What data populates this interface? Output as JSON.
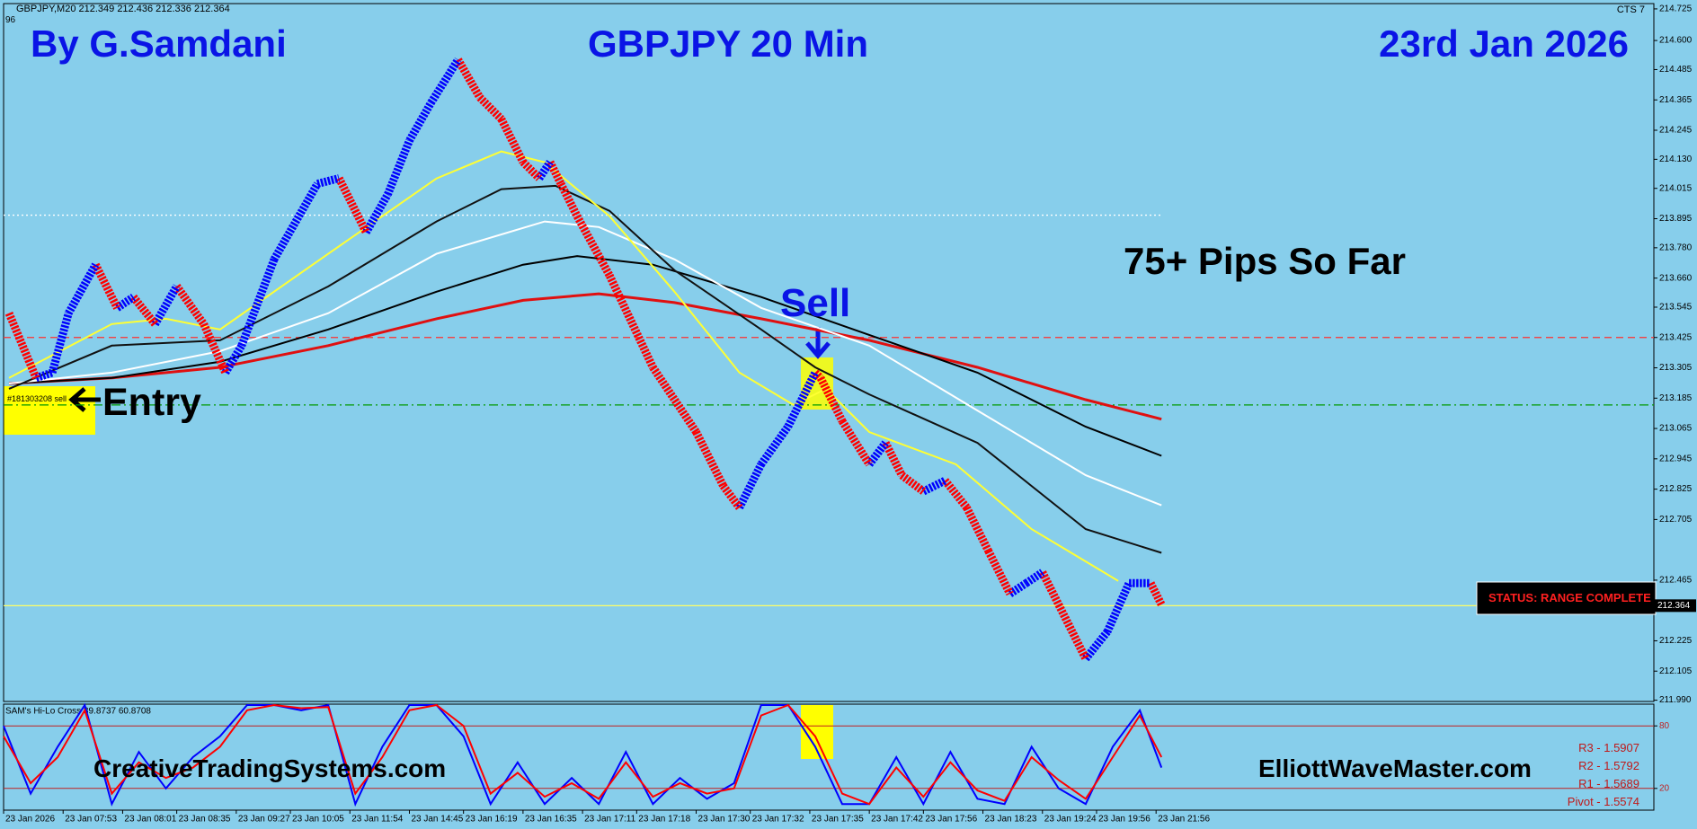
{
  "header": {
    "symbol_info": "GBPJPY,M20  212.349 212.436 212.336 212.364",
    "sub": "96",
    "cts": "CTS 7"
  },
  "annotations": {
    "author": "By G.Samdani",
    "instrument": "GBPJPY 20 Min",
    "date": "23rd Jan 2026",
    "result": "75+ Pips So Far",
    "sell": "Sell",
    "entry": "Entry",
    "order": "#181303208 sell",
    "site_left": "CreativeTradingSystems.com",
    "site_right": "ElliottWaveMaster.com",
    "status": "STATUS: RANGE COMPLETE",
    "pivots": [
      "R3 - 1.5907",
      "R2 - 1.5792",
      "R1 - 1.5689",
      "Pivot - 1.5574"
    ]
  },
  "chart_data": [
    {
      "type": "line",
      "xlim": [
        0,
        305
      ],
      "ylim": [
        211.985,
        214.746
      ],
      "xticks": [
        {
          "value": 0,
          "label": "23 Jan 2026"
        },
        {
          "value": 11,
          "label": "23 Jan 07:53"
        },
        {
          "value": 22,
          "label": "23 Jan 08:01"
        },
        {
          "value": 32,
          "label": "23 Jan 08:35"
        },
        {
          "value": 43,
          "label": "23 Jan 09:27"
        },
        {
          "value": 53,
          "label": "23 Jan 10:05"
        },
        {
          "value": 64,
          "label": "23 Jan 11:54"
        },
        {
          "value": 75,
          "label": "23 Jan 14:45"
        },
        {
          "value": 85,
          "label": "23 Jan 16:19"
        },
        {
          "value": 96,
          "label": "23 Jan 16:35"
        },
        {
          "value": 107,
          "label": "23 Jan 17:11"
        },
        {
          "value": 117,
          "label": "23 Jan 17:18"
        },
        {
          "value": 128,
          "label": "23 Jan 17:30"
        },
        {
          "value": 138,
          "label": "23 Jan 17:32"
        },
        {
          "value": 149,
          "label": "23 Jan 17:35"
        },
        {
          "value": 160,
          "label": "23 Jan 17:42"
        },
        {
          "value": 170,
          "label": "23 Jan 17:56"
        },
        {
          "value": 181,
          "label": "23 Jan 18:23"
        },
        {
          "value": 192,
          "label": "23 Jan 19:24"
        },
        {
          "value": 202,
          "label": "23 Jan 19:56"
        },
        {
          "value": 213,
          "label": "23 Jan 21:56"
        }
      ],
      "yticks": [
        214.725,
        {
          "value": 214.6,
          "label": "214.600"
        },
        214.485,
        214.365,
        214.245,
        {
          "value": 214.13,
          "label": "214.130"
        },
        214.015,
        213.895,
        {
          "value": 213.78,
          "label": "213.780"
        },
        {
          "value": 213.66,
          "label": "213.660"
        },
        213.545,
        213.425,
        213.305,
        213.185,
        213.065,
        212.945,
        212.825,
        212.705,
        212.465,
        212.225,
        212.105,
        {
          "value": 211.99,
          "label": "211.990"
        }
      ],
      "series": [
        {
          "color": "#0000ff",
          "down_color": "#ff0000",
          "x": [
            1,
            6,
            9,
            12,
            17,
            21,
            24,
            28,
            32,
            37,
            41,
            44,
            50,
            58,
            62,
            67,
            71,
            75,
            79,
            84,
            88,
            92,
            96,
            99,
            101,
            103,
            106,
            112,
            120,
            128,
            133,
            136,
            140,
            145,
            150,
            151,
            155,
            160,
            163,
            166,
            170,
            174,
            178,
            182,
            186,
            189,
            192,
            195,
            200,
            204,
            208,
            212,
            214
          ],
          "values": [
            213.521,
            213.265,
            213.286,
            213.521,
            213.713,
            213.542,
            213.585,
            213.478,
            213.628,
            213.478,
            213.286,
            213.393,
            213.734,
            214.033,
            214.055,
            213.841,
            213.991,
            214.204,
            214.354,
            214.524,
            214.375,
            214.289,
            214.119,
            214.055,
            214.119,
            214.033,
            213.905,
            213.67,
            213.307,
            213.051,
            212.838,
            212.752,
            212.923,
            213.073,
            213.286,
            213.265,
            213.094,
            212.923,
            213.008,
            212.88,
            212.816,
            212.859,
            212.752,
            212.581,
            212.411,
            212.453,
            212.496,
            212.368,
            212.154,
            212.261,
            212.453,
            212.453,
            212.368
          ]
        },
        {
          "color": "#e01010",
          "x": [
            1,
            20,
            40,
            60,
            80,
            96,
            110,
            124,
            140,
            160,
            180,
            200,
            214
          ],
          "values": [
            213.243,
            213.265,
            213.307,
            213.393,
            213.499,
            213.572,
            213.598,
            213.563,
            213.499,
            213.414,
            213.307,
            213.179,
            213.102
          ]
        },
        {
          "color": "#000000",
          "x": [
            1,
            20,
            40,
            60,
            80,
            96,
            106,
            120,
            140,
            160,
            180,
            200,
            214
          ],
          "values": [
            213.243,
            213.265,
            213.329,
            213.457,
            213.606,
            213.713,
            213.747,
            213.713,
            213.585,
            213.435,
            213.286,
            213.072,
            212.957
          ]
        },
        {
          "color": "#ffffff",
          "x": [
            1,
            20,
            40,
            60,
            80,
            100,
            110,
            124,
            140,
            160,
            180,
            200,
            214
          ],
          "values": [
            213.243,
            213.286,
            213.371,
            213.521,
            213.756,
            213.884,
            213.862,
            213.734,
            213.542,
            213.393,
            213.136,
            212.88,
            212.761
          ]
        },
        {
          "color": "#111111",
          "x": [
            1,
            20,
            40,
            60,
            80,
            92,
            102,
            112,
            124,
            140,
            150,
            160,
            180,
            200,
            214
          ],
          "values": [
            213.222,
            213.393,
            213.414,
            213.627,
            213.884,
            214.012,
            214.025,
            213.926,
            213.691,
            213.457,
            213.307,
            213.2,
            213.008,
            212.667,
            212.573
          ]
        },
        {
          "color": "#ffff33",
          "x": [
            1,
            20,
            30,
            40,
            60,
            80,
            92,
            100,
            112,
            124,
            136,
            146,
            152,
            160,
            176,
            190,
            200,
            206
          ],
          "values": [
            213.265,
            213.478,
            213.499,
            213.457,
            213.756,
            214.054,
            214.161,
            214.118,
            213.905,
            213.606,
            213.286,
            213.158,
            213.222,
            213.051,
            212.923,
            212.667,
            212.539,
            212.462
          ]
        }
      ],
      "levels": [
        {
          "value": 213.425,
          "color": "#ff3030",
          "style": "dashed"
        },
        {
          "value": 213.158,
          "color": "#009900",
          "style": "dashdot"
        },
        {
          "value": 213.909,
          "color": "#ffffff",
          "style": "dotted"
        },
        {
          "value": 212.364,
          "color": "#ffff66",
          "style": "solid"
        }
      ]
    },
    {
      "type": "line",
      "title": "SAM's Hi-Lo Cross 39.8737 60.8708",
      "xlim": [
        0,
        305
      ],
      "ylim": [
        0,
        100
      ],
      "yticks": [
        20,
        80
      ],
      "x": [
        0,
        5,
        10,
        15,
        20,
        25,
        30,
        35,
        40,
        45,
        50,
        55,
        60,
        65,
        70,
        75,
        80,
        85,
        90,
        95,
        100,
        105,
        110,
        115,
        120,
        125,
        130,
        135,
        140,
        145,
        150,
        155,
        160,
        165,
        170,
        175,
        180,
        185,
        190,
        195,
        200,
        205,
        210,
        214
      ],
      "series": [
        {
          "color": "#0000ff",
          "values": [
            80,
            15,
            60,
            100,
            5,
            55,
            20,
            50,
            70,
            100,
            100,
            95,
            100,
            5,
            60,
            100,
            100,
            70,
            5,
            45,
            5,
            30,
            5,
            55,
            5,
            30,
            10,
            25,
            100,
            100,
            60,
            5,
            5,
            50,
            5,
            55,
            10,
            5,
            60,
            20,
            5,
            60,
            95,
            40
          ]
        },
        {
          "color": "#ff0000",
          "values": [
            70,
            25,
            50,
            95,
            15,
            45,
            30,
            40,
            60,
            95,
            100,
            97,
            98,
            15,
            50,
            95,
            100,
            80,
            15,
            35,
            12,
            25,
            10,
            45,
            12,
            25,
            15,
            20,
            90,
            100,
            70,
            15,
            5,
            40,
            12,
            45,
            18,
            8,
            50,
            28,
            10,
            50,
            90,
            50
          ]
        }
      ]
    }
  ]
}
